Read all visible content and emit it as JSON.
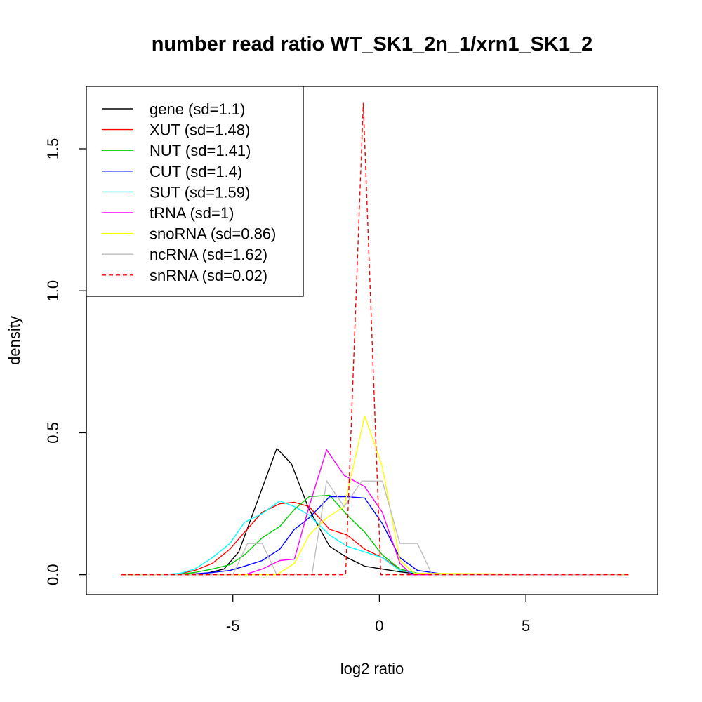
{
  "chart_data": {
    "type": "line",
    "title": "number read ratio WT_SK1_2n_1/xrn1_SK1_2",
    "xlabel": "log2 ratio",
    "ylabel": "density",
    "xlim": [
      -10,
      9.5
    ],
    "ylim": [
      -0.07,
      1.72
    ],
    "x_ticks": [
      -5,
      0,
      5
    ],
    "x_tick_labels": [
      "-5",
      "0",
      "5"
    ],
    "y_ticks": [
      0,
      0.5,
      1,
      1.5
    ],
    "y_tick_labels": [
      "0.0",
      "0.5",
      "1.0",
      "1.5"
    ],
    "grid": false,
    "legend_position": "top-left",
    "series": [
      {
        "name": "gene (sd=1.1)",
        "color": "#000000",
        "dash": false,
        "x": [
          -8.8,
          -7.0,
          -6.0,
          -5.3,
          -4.8,
          -4.3,
          -3.5,
          -3.0,
          -2.4,
          -1.7,
          -1.1,
          -0.5,
          0.1,
          0.7,
          1.3,
          8.5
        ],
        "y": [
          0,
          0,
          0.003,
          0.02,
          0.08,
          0.22,
          0.445,
          0.39,
          0.23,
          0.1,
          0.06,
          0.03,
          0.02,
          0.01,
          0.003,
          0
        ]
      },
      {
        "name": "XUT (sd=1.48)",
        "color": "#ff0000",
        "dash": false,
        "x": [
          -8.8,
          -7.0,
          -6.3,
          -5.7,
          -5.1,
          -4.6,
          -4.0,
          -3.4,
          -2.9,
          -2.4,
          -1.7,
          -1.1,
          -0.5,
          0.1,
          0.7,
          1.3,
          2.0,
          8.5
        ],
        "y": [
          0,
          0,
          0.015,
          0.04,
          0.09,
          0.15,
          0.22,
          0.25,
          0.255,
          0.24,
          0.16,
          0.14,
          0.09,
          0.06,
          0.02,
          0.005,
          0,
          0
        ]
      },
      {
        "name": "NUT (sd=1.41)",
        "color": "#00cd00",
        "dash": false,
        "x": [
          -8.8,
          -7.0,
          -6.3,
          -5.7,
          -5.1,
          -4.6,
          -4.0,
          -3.4,
          -2.9,
          -2.4,
          -1.7,
          -1.1,
          -0.5,
          0.1,
          0.7,
          1.3,
          2.0,
          8.5
        ],
        "y": [
          0,
          0,
          0.008,
          0.02,
          0.035,
          0.07,
          0.13,
          0.17,
          0.23,
          0.275,
          0.28,
          0.21,
          0.15,
          0.07,
          0.02,
          0.005,
          0,
          0
        ]
      },
      {
        "name": "CUT (sd=1.4)",
        "color": "#0000ff",
        "dash": false,
        "x": [
          -8.8,
          -7.0,
          -6.3,
          -5.7,
          -5.1,
          -4.6,
          -4.0,
          -3.4,
          -2.9,
          -2.4,
          -1.7,
          -1.1,
          -0.5,
          0.1,
          0.7,
          1.3,
          2.0,
          2.5,
          8.5
        ],
        "y": [
          0,
          0,
          0.003,
          0.008,
          0.015,
          0.03,
          0.05,
          0.09,
          0.16,
          0.2,
          0.275,
          0.275,
          0.27,
          0.18,
          0.06,
          0.015,
          0.005,
          0,
          0
        ]
      },
      {
        "name": "SUT (sd=1.59)",
        "color": "#00ffff",
        "dash": false,
        "x": [
          -8.8,
          -7.5,
          -6.8,
          -6.3,
          -5.7,
          -5.1,
          -4.6,
          -4.0,
          -3.4,
          -2.9,
          -2.4,
          -1.7,
          -1.1,
          -0.5,
          0.1,
          0.7,
          1.3,
          2.0,
          8.5
        ],
        "y": [
          0,
          0,
          0.005,
          0.02,
          0.06,
          0.11,
          0.185,
          0.215,
          0.26,
          0.24,
          0.21,
          0.14,
          0.1,
          0.08,
          0.06,
          0.015,
          0.005,
          0,
          0
        ]
      },
      {
        "name": "tRNA (sd=1)",
        "color": "#ff00ff",
        "dash": false,
        "x": [
          -8.8,
          -5.0,
          -4.6,
          -4.0,
          -3.4,
          -2.9,
          -2.4,
          -1.8,
          -1.2,
          -0.5,
          0.1,
          0.7,
          1.1,
          8.5
        ],
        "y": [
          0,
          0,
          0,
          0.02,
          0.05,
          0.055,
          0.24,
          0.44,
          0.35,
          0.31,
          0.22,
          0.04,
          0,
          0
        ]
      },
      {
        "name": "snoRNA (sd=0.86)",
        "color": "#ffff00",
        "dash": false,
        "x": [
          -8.8,
          -3.5,
          -2.9,
          -2.4,
          -1.8,
          -1.2,
          -0.5,
          0.1,
          0.7,
          1.2,
          8.5
        ],
        "y": [
          0,
          0,
          0.04,
          0.14,
          0.2,
          0.24,
          0.56,
          0.38,
          0.05,
          0.005,
          0
        ]
      },
      {
        "name": "ncRNA (sd=1.62)",
        "color": "#bebebe",
        "dash": false,
        "x": [
          -8.8,
          -5.0,
          -4.5,
          -4.0,
          -3.5,
          -2.9,
          -2.3,
          -1.8,
          -1.2,
          -0.6,
          0.1,
          0.7,
          1.3,
          1.8,
          8.5
        ],
        "y": [
          0,
          0,
          0.11,
          0.11,
          0,
          0,
          0,
          0.33,
          0.24,
          0.33,
          0.33,
          0.11,
          0.11,
          0,
          0
        ]
      },
      {
        "name": "snRNA (sd=0.02)",
        "color": "#ff0000",
        "dash": true,
        "x": [
          -8.8,
          -1.15,
          -0.55,
          0.05,
          8.5
        ],
        "y": [
          0,
          0,
          1.66,
          0,
          0
        ]
      }
    ]
  }
}
